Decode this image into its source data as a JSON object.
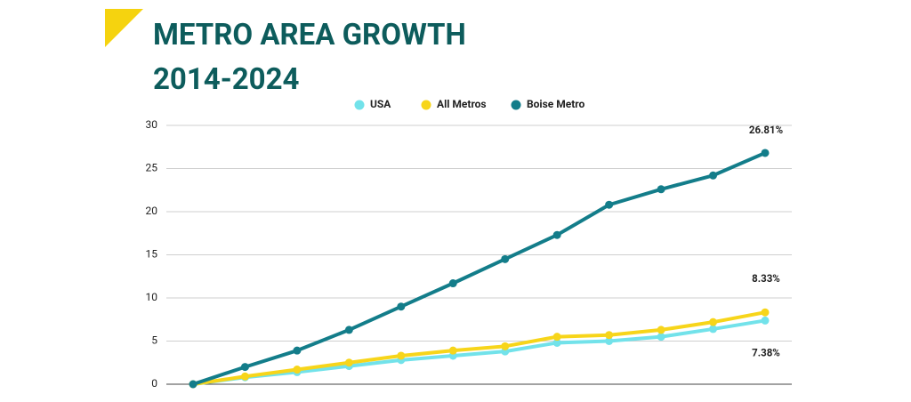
{
  "chart_data": {
    "type": "line",
    "title": "METRO AREA GROWTH",
    "subtitle": "2014-2024",
    "categories": [
      null,
      null,
      null,
      null,
      null,
      null,
      null,
      null,
      null,
      null,
      null,
      null
    ],
    "series": [
      {
        "name": "USA",
        "color": "#72e2ea",
        "values": [
          0,
          0.8,
          1.4,
          2.1,
          2.8,
          3.3,
          3.8,
          4.8,
          5.0,
          5.5,
          6.4,
          7.38
        ],
        "value_labels": [
          null,
          null,
          null,
          null,
          null,
          null,
          null,
          null,
          null,
          null,
          null,
          "7.38%"
        ]
      },
      {
        "name": "All Metros",
        "color": "#f7d51a",
        "values": [
          0,
          0.9,
          1.7,
          2.5,
          3.3,
          3.9,
          4.4,
          5.5,
          5.7,
          6.3,
          7.2,
          8.33
        ],
        "value_labels": [
          null,
          null,
          null,
          null,
          null,
          null,
          null,
          null,
          null,
          null,
          null,
          "8.33%"
        ]
      },
      {
        "name": "Boise Metro",
        "color": "#137d8a",
        "values": [
          0,
          2.0,
          3.9,
          6.3,
          9.0,
          11.7,
          14.5,
          17.3,
          20.8,
          22.6,
          24.2,
          26.81
        ],
        "value_labels": [
          null,
          null,
          null,
          null,
          null,
          null,
          null,
          null,
          null,
          null,
          null,
          "26.81%"
        ]
      }
    ],
    "ylim": [
      0,
      30
    ],
    "yticks": [
      0,
      5,
      10,
      15,
      20,
      25,
      30
    ],
    "grid": true,
    "legend": "top"
  }
}
